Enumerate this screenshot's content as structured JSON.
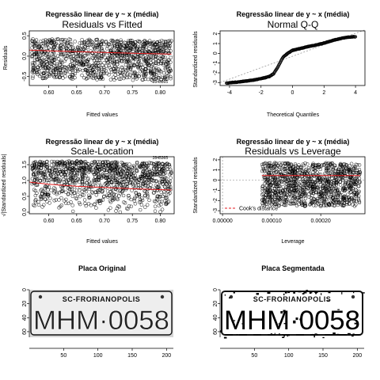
{
  "panels": [
    {
      "id": "residuals-vs-fitted",
      "main_title": "Regressão linear de y ~ x (média)",
      "subtitle": "Residuals vs Fitted",
      "xlabel": "Fitted values",
      "ylabel": "Residuals",
      "xticks": [
        "0.60",
        "0.65",
        "0.70",
        "0.75",
        "0.80"
      ],
      "yticks": [
        "-0.5",
        "0.0",
        "0.5"
      ],
      "annotation": "2845365"
    },
    {
      "id": "normal-qq",
      "main_title": "Regressão linear de y ~ x (média)",
      "subtitle": "Normal Q-Q",
      "xlabel": "Theoretical Quantiles",
      "ylabel": "Standardized residuals",
      "xticks": [
        "-4",
        "-2",
        "0",
        "2",
        "4"
      ],
      "yticks": [
        "-3",
        "-2",
        "-1",
        "0",
        "1",
        "2"
      ]
    },
    {
      "id": "scale-location",
      "main_title": "Regressão linear de y ~ x (média)",
      "subtitle": "Scale-Location",
      "xlabel": "Fitted values",
      "ylabel": "√|Standardized residuals|",
      "xticks": [
        "0.60",
        "0.65",
        "0.70",
        "0.75",
        "0.80"
      ],
      "yticks": [
        "0.0",
        "0.5",
        "1.0",
        "1.5"
      ],
      "annotation": "2845365"
    },
    {
      "id": "residuals-vs-leverage",
      "main_title": "Regressão linear de y ~ x (média)",
      "subtitle": "Residuals vs Leverage",
      "xlabel": "Leverage",
      "ylabel": "Standardized residuals",
      "xticks": [
        "0.00000",
        "0.00010",
        "0.00020"
      ],
      "yticks": [
        "-3",
        "-2",
        "-1",
        "0",
        "1",
        "2"
      ],
      "legend": "Cook's distance"
    },
    {
      "id": "placa-original",
      "main_title": "Placa Original",
      "plate_region": "SC-FRORIANOPOLIS",
      "plate_number": "MHM·0058",
      "xticks": [
        "50",
        "100",
        "150",
        "200"
      ],
      "yticks": [
        "0",
        "20",
        "40",
        "60"
      ]
    },
    {
      "id": "placa-segmentada",
      "main_title": "Placa Segmentada",
      "plate_region": "SC-FRORIANOPOLIS",
      "plate_number": "MHM·0058",
      "xticks": [
        "50",
        "100",
        "150",
        "200"
      ],
      "yticks": [
        "0",
        "20",
        "40",
        "60"
      ]
    }
  ],
  "colors": {
    "points": "#000000",
    "smoother": "#e41a1c",
    "reference": "#999999",
    "cooks": "#e41a1c",
    "plate_gray": "#d6d6d6"
  },
  "chart_data": [
    {
      "type": "scatter",
      "title": "Residuals vs Fitted",
      "xlabel": "Fitted values",
      "ylabel": "Residuals",
      "xlim": [
        0.565,
        0.825
      ],
      "ylim": [
        -0.72,
        0.62
      ],
      "x": [
        0.6,
        0.65,
        0.7,
        0.75,
        0.8
      ],
      "residual_upper": [
        0.45,
        0.43,
        0.41,
        0.4,
        0.38
      ],
      "residual_lower": [
        -0.55,
        -0.57,
        -0.58,
        -0.59,
        -0.6
      ],
      "smoother_x": [
        0.565,
        0.6,
        0.65,
        0.7,
        0.75,
        0.82
      ],
      "smoother_y": [
        0.15,
        0.13,
        0.11,
        0.09,
        0.07,
        0.05
      ]
    },
    {
      "type": "scatter",
      "title": "Normal Q-Q",
      "xlabel": "Theoretical Quantiles",
      "ylabel": "Standardized residuals",
      "xlim": [
        -4.6,
        4.6
      ],
      "ylim": [
        -3.3,
        2.3
      ],
      "x": [
        -4.2,
        -3.5,
        -3,
        -2.5,
        -2,
        -1.5,
        -1.2,
        -1,
        -0.8,
        -0.6,
        -0.3,
        0,
        0.5,
        1,
        1.5,
        2,
        2.5,
        3,
        3.5,
        4
      ],
      "y": [
        -3.05,
        -2.95,
        -2.85,
        -2.75,
        -2.6,
        -2.4,
        -2.1,
        -1.6,
        -1.0,
        -0.4,
        0.0,
        0.3,
        0.5,
        0.7,
        0.85,
        1.05,
        1.3,
        1.5,
        1.65,
        1.7
      ],
      "reference_line": [
        [
          -4.6,
          -3.0
        ],
        [
          4.6,
          2.4
        ]
      ]
    },
    {
      "type": "scatter",
      "title": "Scale-Location",
      "xlabel": "Fitted values",
      "ylabel": "√|Standardized residuals|",
      "xlim": [
        0.565,
        0.825
      ],
      "ylim": [
        -0.05,
        1.75
      ],
      "x": [
        0.6,
        0.65,
        0.7,
        0.75,
        0.8
      ],
      "upper": [
        1.6,
        1.62,
        1.6,
        1.58,
        1.55
      ],
      "smoother_x": [
        0.565,
        0.6,
        0.65,
        0.7,
        0.75,
        0.82
      ],
      "smoother_y": [
        0.95,
        0.88,
        0.82,
        0.78,
        0.74,
        0.7
      ]
    },
    {
      "type": "scatter",
      "title": "Residuals vs Leverage",
      "xlabel": "Leverage",
      "ylabel": "Standardized residuals",
      "xlim": [
        -5e-06,
        0.00029
      ],
      "ylim": [
        -3.3,
        2.3
      ],
      "x_range": [
        8e-05,
        0.00028
      ],
      "y_upper": 1.7,
      "y_lower": -3.0,
      "smoother_y": 0.45
    }
  ]
}
